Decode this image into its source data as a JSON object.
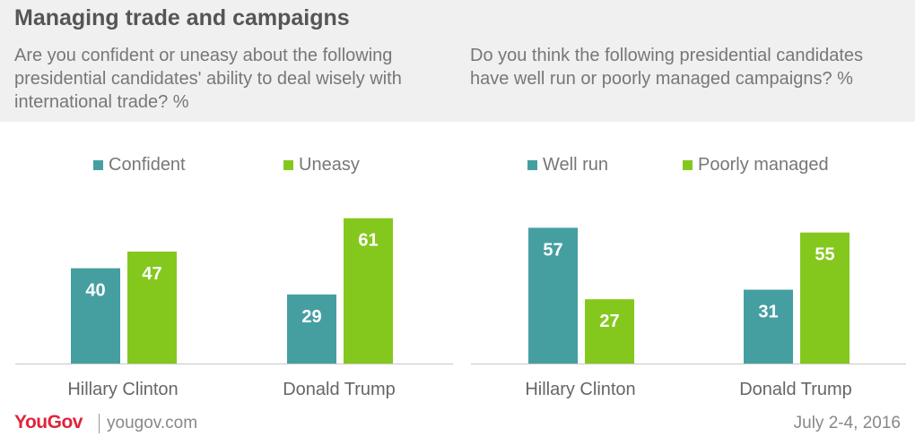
{
  "title": "Managing trade and campaigns",
  "questions": {
    "left": "Are you confident or uneasy about the following presidential candidates' ability to deal wisely with international trade? %",
    "right": "Do you think the following presidential candidates have well run or poorly managed campaigns? %"
  },
  "colors": {
    "teal": "#459fa1",
    "green": "#84c81e"
  },
  "chart_data": [
    {
      "type": "bar",
      "categories": [
        "Hillary Clinton",
        "Donald Trump"
      ],
      "series": [
        {
          "name": "Confident",
          "values": [
            40,
            29
          ],
          "color": "#459fa1"
        },
        {
          "name": "Uneasy",
          "values": [
            47,
            61
          ],
          "color": "#84c81e"
        }
      ],
      "ylim": [
        0,
        61
      ],
      "legend_position": "top"
    },
    {
      "type": "bar",
      "categories": [
        "Hillary Clinton",
        "Donald Trump"
      ],
      "series": [
        {
          "name": "Well run",
          "values": [
            57,
            31
          ],
          "color": "#459fa1"
        },
        {
          "name": "Poorly managed",
          "values": [
            27,
            55
          ],
          "color": "#84c81e"
        }
      ],
      "ylim": [
        0,
        61
      ],
      "legend_position": "top"
    }
  ],
  "footer": {
    "logo": "YouGov",
    "site": "yougov.com",
    "date": "July 2-4, 2016"
  }
}
